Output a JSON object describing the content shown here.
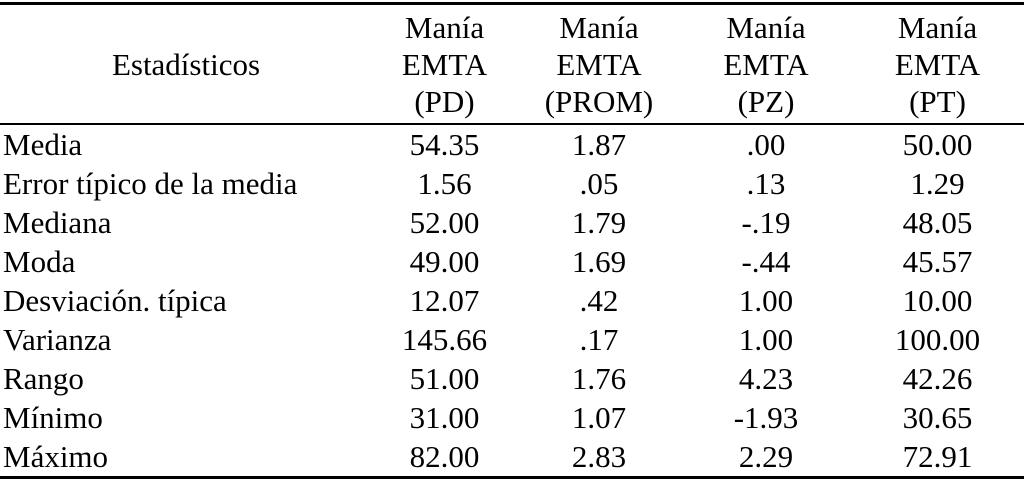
{
  "colors": {
    "background": "#ffffff",
    "text": "#000000",
    "rule": "#000000"
  },
  "table": {
    "label_header": "Estadísticos",
    "columns": [
      {
        "id": "pd",
        "lines": [
          "Manía",
          "EMTA",
          "(PD)"
        ]
      },
      {
        "id": "prom",
        "lines": [
          "Manía",
          "EMTA",
          "(PROM)"
        ]
      },
      {
        "id": "pz",
        "lines": [
          "Manía",
          "EMTA",
          "(PZ)"
        ]
      },
      {
        "id": "pt",
        "lines": [
          "Manía",
          "EMTA",
          "(PT)"
        ]
      }
    ],
    "rows": [
      {
        "label": "Media",
        "values": [
          "54.35",
          "1.87",
          ".00",
          "50.00"
        ]
      },
      {
        "label": "Error típico de la media",
        "values": [
          "1.56",
          ".05",
          ".13",
          "1.29"
        ]
      },
      {
        "label": "Mediana",
        "values": [
          "52.00",
          "1.79",
          "-.19",
          "48.05"
        ]
      },
      {
        "label": "Moda",
        "values": [
          "49.00",
          "1.69",
          "-.44",
          "45.57"
        ]
      },
      {
        "label": "Desviación. típica",
        "values": [
          "12.07",
          ".42",
          "1.00",
          "10.00"
        ]
      },
      {
        "label": "Varianza",
        "values": [
          "145.66",
          ".17",
          "1.00",
          "100.00"
        ]
      },
      {
        "label": "Rango",
        "values": [
          "51.00",
          "1.76",
          "4.23",
          "42.26"
        ]
      },
      {
        "label": "Mínimo",
        "values": [
          "31.00",
          "1.07",
          "-1.93",
          "30.65"
        ]
      },
      {
        "label": "Máximo",
        "values": [
          "82.00",
          "2.83",
          "2.29",
          "72.91"
        ]
      }
    ]
  },
  "chart_data": {
    "type": "table",
    "columns": [
      "Estadísticos",
      "Manía EMTA (PD)",
      "Manía EMTA (PROM)",
      "Manía EMTA (PZ)",
      "Manía EMTA (PT)"
    ],
    "rows": [
      [
        "Media",
        54.35,
        1.87,
        0.0,
        50.0
      ],
      [
        "Error típico de la media",
        1.56,
        0.05,
        0.13,
        1.29
      ],
      [
        "Mediana",
        52.0,
        1.79,
        -0.19,
        48.05
      ],
      [
        "Moda",
        49.0,
        1.69,
        -0.44,
        45.57
      ],
      [
        "Desviación. típica",
        12.07,
        0.42,
        1.0,
        10.0
      ],
      [
        "Varianza",
        145.66,
        0.17,
        1.0,
        100.0
      ],
      [
        "Rango",
        51.0,
        1.76,
        4.23,
        42.26
      ],
      [
        "Mínimo",
        31.0,
        1.07,
        -1.93,
        30.65
      ],
      [
        "Máximo",
        82.0,
        2.83,
        2.29,
        72.91
      ]
    ]
  }
}
